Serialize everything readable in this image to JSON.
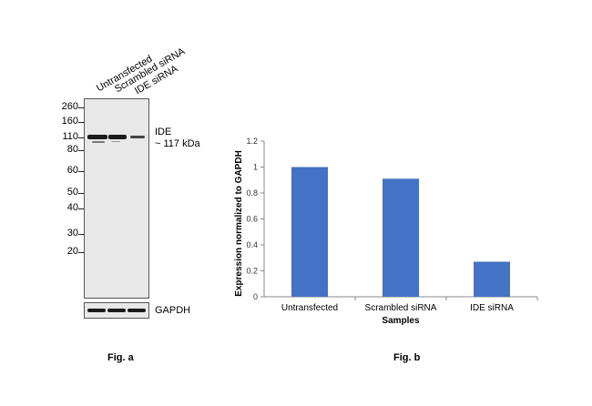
{
  "fig_a": {
    "lane_labels": [
      "Untransfected",
      "Scrambled siRNA",
      "IDE siRNA"
    ],
    "markers": [
      "260",
      "160",
      "110",
      "80",
      "60",
      "50",
      "40",
      "30",
      "20"
    ],
    "target_label": "IDE",
    "target_size": "~ 117 kDa",
    "loading_control": "GAPDH",
    "caption": "Fig. a"
  },
  "fig_b": {
    "caption": "Fig. b"
  },
  "chart_data": {
    "type": "bar",
    "categories": [
      "Untransfected",
      "Scrambled siRNA",
      "IDE siRNA"
    ],
    "values": [
      1.0,
      0.91,
      0.27
    ],
    "title": "",
    "xlabel": "Samples",
    "ylabel": "Expression normalized to GAPDH",
    "ylim": [
      0,
      1.2
    ],
    "yticks": [
      "0",
      "0.2",
      "0.4",
      "0.6",
      "0.8",
      "1",
      "1.2"
    ],
    "bar_color": "#4472c4"
  }
}
